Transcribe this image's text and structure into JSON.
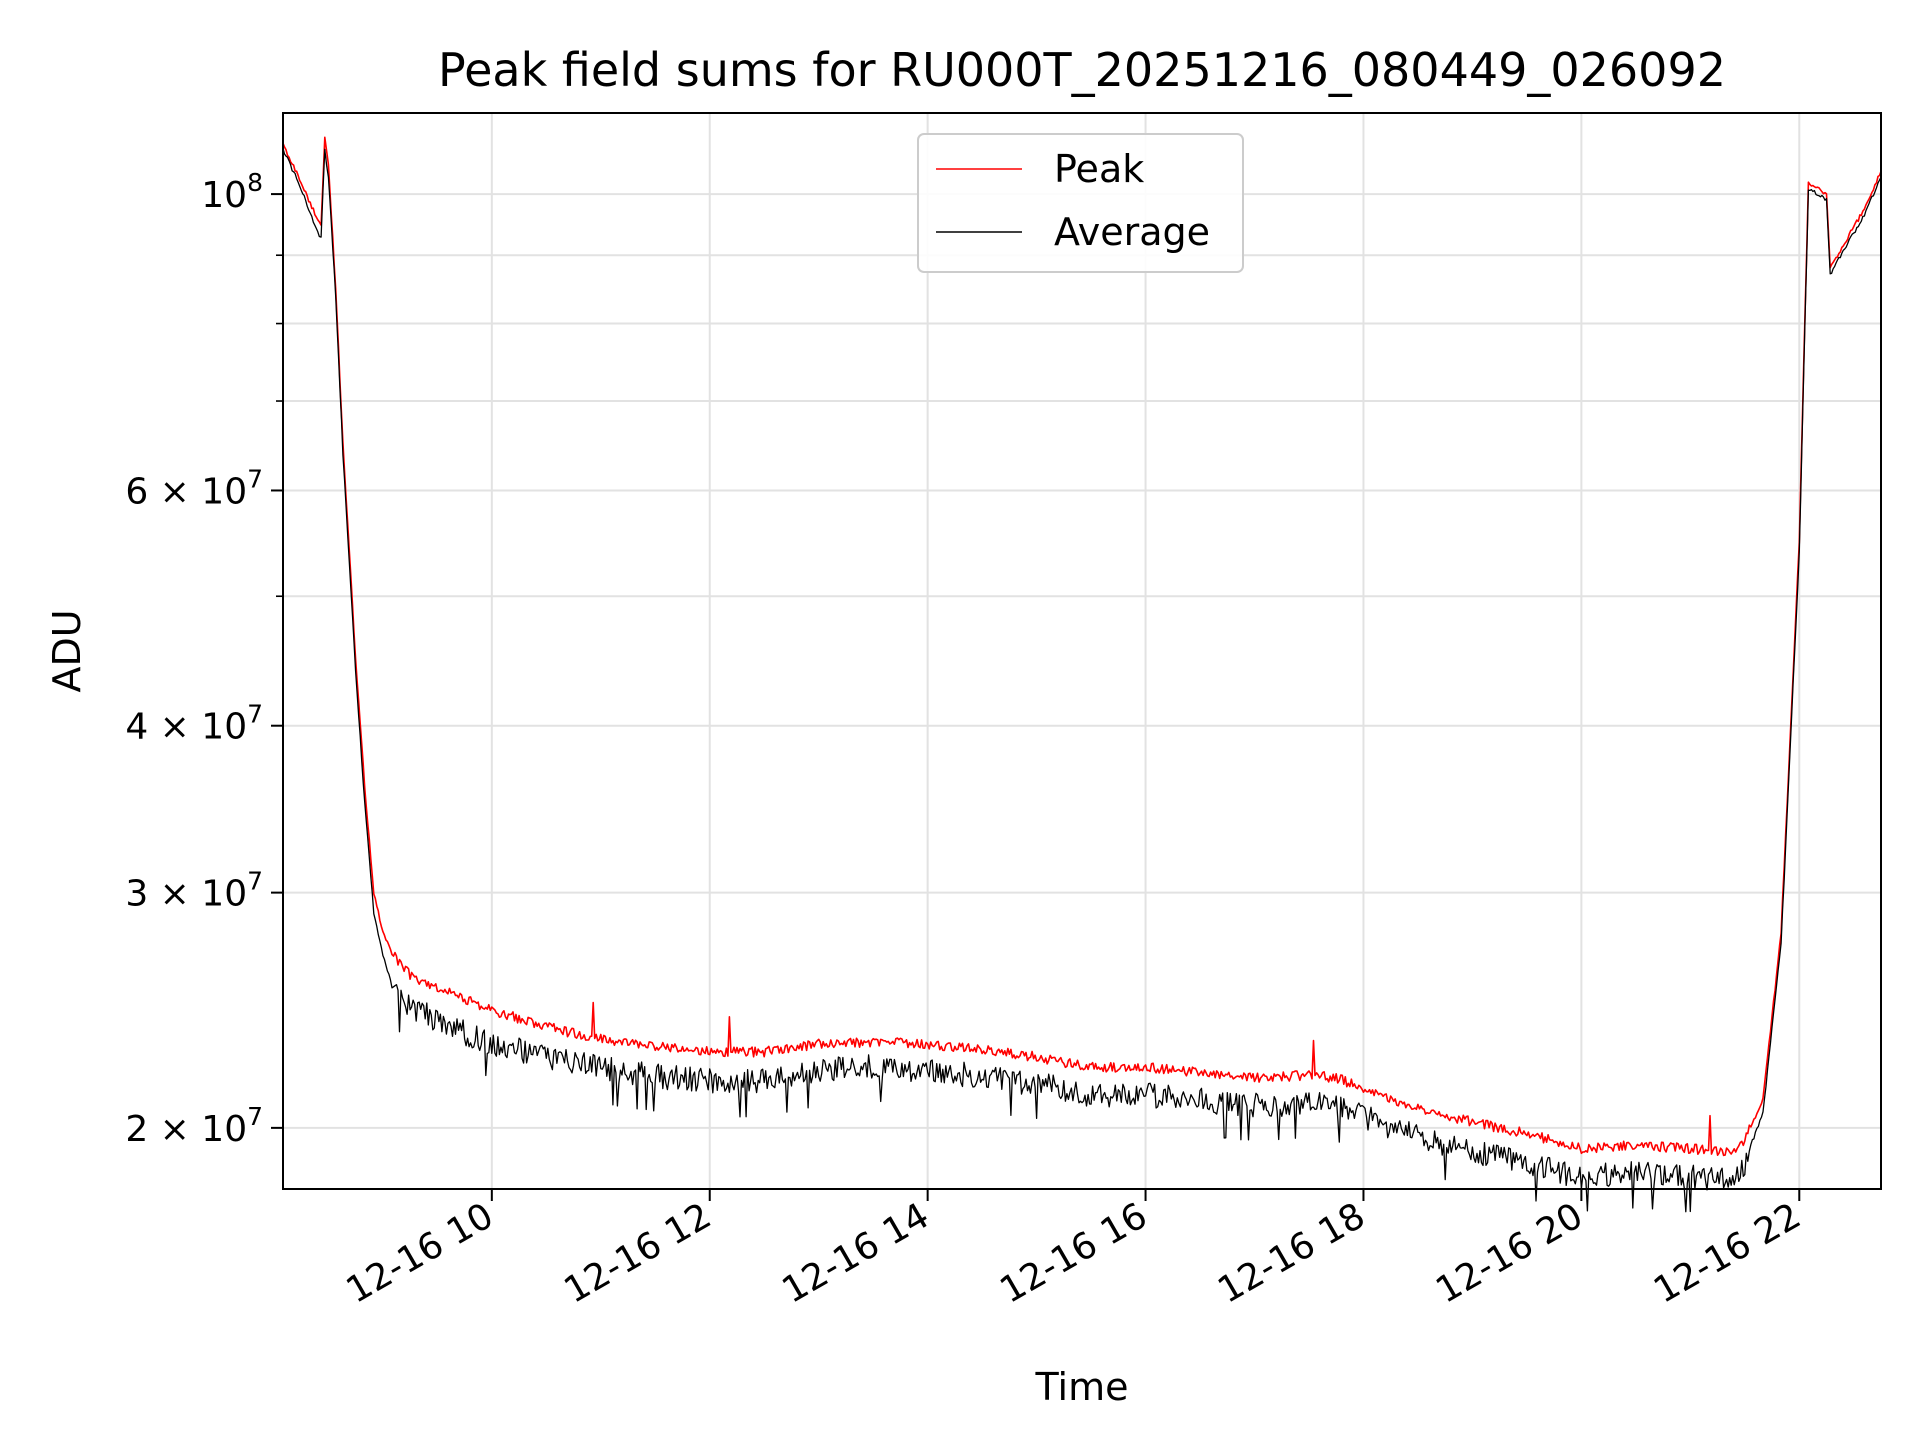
{
  "chart_data": {
    "type": "line",
    "title": "Peak field sums for RU000T_20251216_080449_026092",
    "xlabel": "Time",
    "ylabel": "ADU",
    "yscale": "log",
    "xlim": [
      "2025-12-16 08:05",
      "2025-12-16 22:45"
    ],
    "ylim": [
      18000000,
      115000000
    ],
    "x_ticks": [
      "12-16 10",
      "12-16 12",
      "12-16 14",
      "12-16 16",
      "12-16 18",
      "12-16 20",
      "12-16 22"
    ],
    "x_tick_times": [
      "2025-12-16 10:00",
      "2025-12-16 12:00",
      "2025-12-16 14:00",
      "2025-12-16 16:00",
      "2025-12-16 18:00",
      "2025-12-16 20:00",
      "2025-12-16 22:00"
    ],
    "y_ticks": [
      {
        "value": 100000000,
        "mant": "10",
        "exp": "8"
      },
      {
        "value": 60000000,
        "mant": "6 × 10",
        "exp": "7"
      },
      {
        "value": 40000000,
        "mant": "4 × 10",
        "exp": "7"
      },
      {
        "value": 30000000,
        "mant": "3 × 10",
        "exp": "7"
      },
      {
        "value": 20000000,
        "mant": "2 × 10",
        "exp": "7"
      }
    ],
    "y_minor_ticks": [
      90000000,
      80000000,
      70000000,
      50000000
    ],
    "grid": true,
    "legend": "top-center",
    "series": [
      {
        "name": "Peak",
        "color": "#ff0000",
        "x": [
          "08:05",
          "08:15",
          "08:25",
          "08:26",
          "08:28",
          "08:30",
          "08:34",
          "08:38",
          "08:45",
          "08:50",
          "08:55",
          "09:00",
          "09:05",
          "09:15",
          "09:30",
          "09:45",
          "10:00",
          "10:30",
          "11:00",
          "11:30",
          "12:00",
          "12:30",
          "13:00",
          "13:30",
          "14:00",
          "14:30",
          "15:00",
          "15:30",
          "16:00",
          "16:30",
          "17:00",
          "17:30",
          "17:45",
          "18:00",
          "18:30",
          "19:00",
          "19:30",
          "20:00",
          "20:30",
          "21:00",
          "21:15",
          "21:25",
          "21:30",
          "21:40",
          "21:50",
          "22:00",
          "22:05",
          "22:15",
          "22:17",
          "22:25",
          "22:35",
          "22:45"
        ],
        "y": [
          109000000,
          102000000,
          95000000,
          95000000,
          110000000,
          105000000,
          85000000,
          65000000,
          45000000,
          36000000,
          30000000,
          28000000,
          27000000,
          26000000,
          25500000,
          25000000,
          24500000,
          23800000,
          23300000,
          23000000,
          22800000,
          22800000,
          23100000,
          23200000,
          23100000,
          22900000,
          22600000,
          22200000,
          22200000,
          22000000,
          21800000,
          21900000,
          21800000,
          21400000,
          20700000,
          20200000,
          19800000,
          19300000,
          19400000,
          19300000,
          19200000,
          19200000,
          19600000,
          21000000,
          28000000,
          55000000,
          102000000,
          100000000,
          88000000,
          92000000,
          97000000,
          104000000
        ]
      },
      {
        "name": "Average",
        "color": "#000000",
        "x": [
          "08:05",
          "08:15",
          "08:25",
          "08:26",
          "08:28",
          "08:30",
          "08:34",
          "08:38",
          "08:45",
          "08:50",
          "08:55",
          "09:00",
          "09:05",
          "09:15",
          "09:30",
          "09:45",
          "10:00",
          "10:30",
          "11:00",
          "11:30",
          "12:00",
          "12:30",
          "13:00",
          "13:30",
          "14:00",
          "14:30",
          "15:00",
          "15:30",
          "16:00",
          "16:30",
          "17:00",
          "17:30",
          "17:45",
          "18:00",
          "18:30",
          "19:00",
          "19:30",
          "20:00",
          "20:30",
          "21:00",
          "21:15",
          "21:25",
          "21:30",
          "21:40",
          "21:50",
          "22:00",
          "22:05",
          "22:15",
          "22:17",
          "22:25",
          "22:35",
          "22:45"
        ],
        "y": [
          108000000,
          101000000,
          93000000,
          93000000,
          108000000,
          103000000,
          84000000,
          64000000,
          44000000,
          35000000,
          29000000,
          27000000,
          25500000,
          24800000,
          24200000,
          23700000,
          23300000,
          22700000,
          22300000,
          22000000,
          21800000,
          21800000,
          22200000,
          22400000,
          22200000,
          22000000,
          21700000,
          21300000,
          21300000,
          21100000,
          20900000,
          21000000,
          20900000,
          20500000,
          19800000,
          19300000,
          18900000,
          18500000,
          18600000,
          18500000,
          18400000,
          18400000,
          18900000,
          20500000,
          27500000,
          54000000,
          101000000,
          99000000,
          87000000,
          91000000,
          96000000,
          103000000
        ]
      }
    ]
  }
}
